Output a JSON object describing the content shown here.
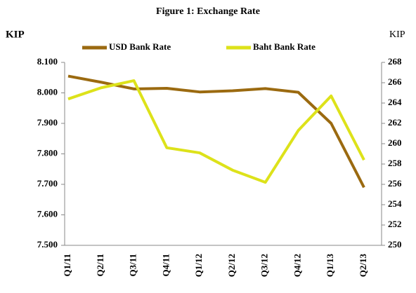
{
  "chart_data": {
    "type": "line",
    "title": "Figure 1: Exchange Rate",
    "y_label": "KIP",
    "y2_label": "KIP",
    "categories": [
      "Q1/11",
      "Q2/11",
      "Q3/11",
      "Q4/11",
      "Q1/12",
      "Q2/12",
      "Q3/12",
      "Q4/12",
      "Q1/13",
      "Q2/13"
    ],
    "series": [
      {
        "name": "USD Bank Rate",
        "color": "#9b6a10",
        "values": [
          8.055,
          8.035,
          8.013,
          8.015,
          8.003,
          8.007,
          8.014,
          8.002,
          7.9,
          7.69
        ]
      },
      {
        "name": "Baht Bank Rate",
        "color": "#dde21a",
        "axis": "y2",
        "values": [
          264.4,
          265.5,
          266.2,
          259.6,
          259.1,
          257.4,
          256.2,
          261.3,
          264.7,
          258.4
        ]
      }
    ],
    "ylim": [
      7.5,
      8.1
    ],
    "yticks": [
      {
        "value": 7.5,
        "label": "7.500"
      },
      {
        "value": 7.6,
        "label": "7.600"
      },
      {
        "value": 7.7,
        "label": "7.700"
      },
      {
        "value": 7.8,
        "label": "7.800"
      },
      {
        "value": 7.9,
        "label": "7.900"
      },
      {
        "value": 8.0,
        "label": "8.000"
      },
      {
        "value": 8.1,
        "label": "8.100"
      }
    ],
    "y2lim": [
      250,
      268
    ],
    "y2ticks": [
      250,
      252,
      254,
      256,
      258,
      260,
      262,
      264,
      266,
      268
    ],
    "legend": "top",
    "grid": false
  }
}
